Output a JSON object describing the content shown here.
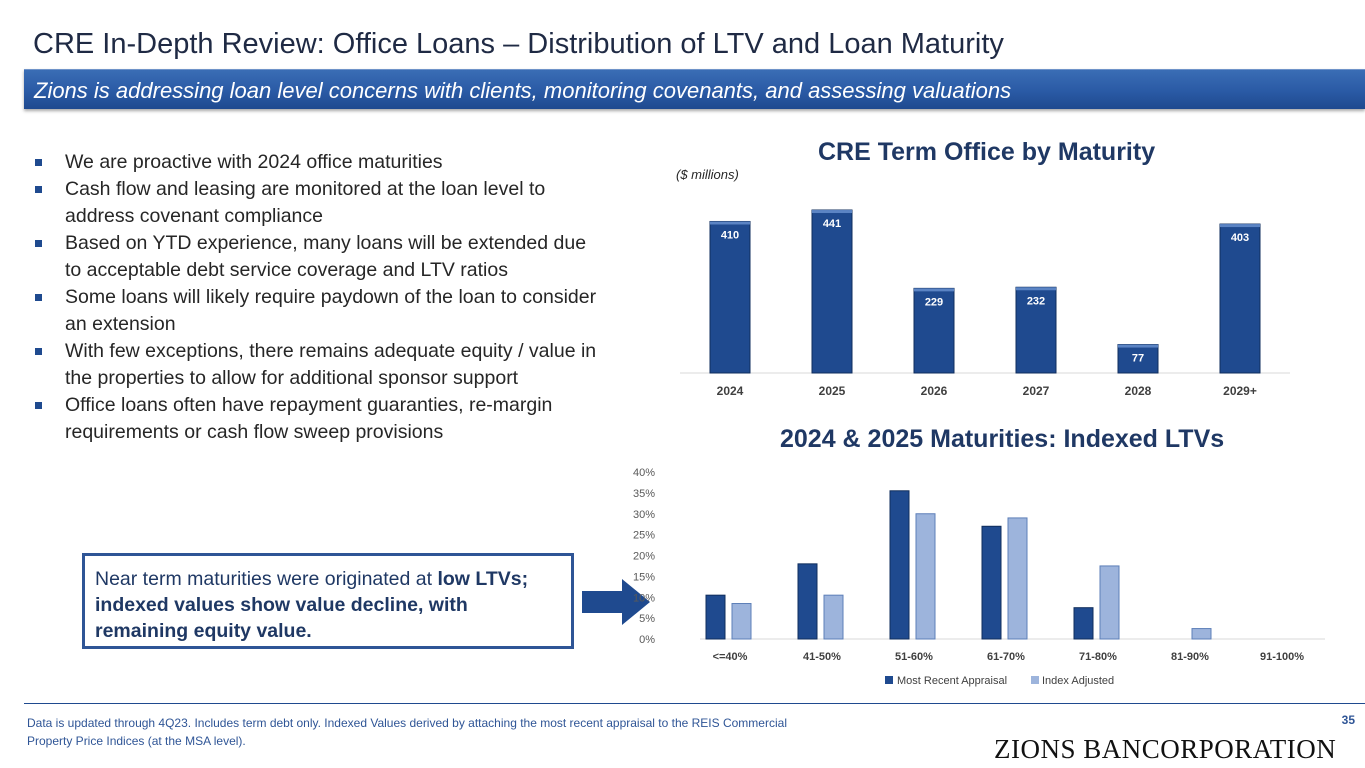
{
  "title": "CRE In-Depth Review: Office Loans – Distribution of LTV and Loan Maturity",
  "subtitle": "Zions is addressing loan level concerns with clients, monitoring covenants, and assessing valuations",
  "bullets": [
    "We are proactive with 2024 office maturities",
    "Cash flow and leasing are monitored at the loan level to address covenant compliance",
    "Based on YTD experience, many loans will be extended due to acceptable debt service coverage and LTV ratios",
    "Some loans will likely require paydown of the loan to consider an extension",
    "With few exceptions, there remains adequate equity / value in the properties to allow for additional sponsor support",
    "Office loans often have repayment guaranties, re-margin requirements or cash flow sweep provisions"
  ],
  "callout": {
    "text_before": "Near term maturities were originated at ",
    "text_bold": "low LTVs; indexed values show value decline, with remaining equity value."
  },
  "footnote": "Data is updated through 4Q23. Includes term debt only. Indexed Values derived by attaching the most recent appraisal to the REIS Commercial Property Price Indices (at the MSA level).",
  "page_number": "35",
  "logo_text": "ZIONS BANCORPORATION",
  "colors": {
    "dark_bar": "#1f4a8f",
    "light_bar": "#9db4dc",
    "banner": "#2a5aa5",
    "title_text": "#1f3864"
  },
  "chart_data": [
    {
      "type": "bar",
      "title": "CRE Term Office by Maturity",
      "units": "($ millions)",
      "categories": [
        "2024",
        "2025",
        "2026",
        "2027",
        "2028",
        "2029+"
      ],
      "values": [
        410,
        441,
        229,
        232,
        77,
        403
      ],
      "data_labels": [
        "410",
        "441",
        "229",
        "232",
        "77",
        "403"
      ],
      "ylim": [
        0,
        460
      ],
      "grid": false
    },
    {
      "type": "bar",
      "title": "2024 & 2025 Maturities: Indexed LTVs",
      "categories": [
        "<=40%",
        "41-50%",
        "51-60%",
        "61-70%",
        "71-80%",
        "81-90%",
        "91-100%"
      ],
      "series": [
        {
          "name": "Most Recent Appraisal",
          "values": [
            10.5,
            18,
            35.5,
            27,
            7.5,
            0,
            0
          ]
        },
        {
          "name": "Index Adjusted",
          "values": [
            8.5,
            10.5,
            30,
            29,
            17.5,
            2.5,
            0
          ]
        }
      ],
      "y_ticks": [
        "0%",
        "5%",
        "10%",
        "15%",
        "20%",
        "25%",
        "30%",
        "35%",
        "40%"
      ],
      "ylim": [
        0,
        40
      ],
      "legend_position": "bottom",
      "grid": false
    }
  ]
}
